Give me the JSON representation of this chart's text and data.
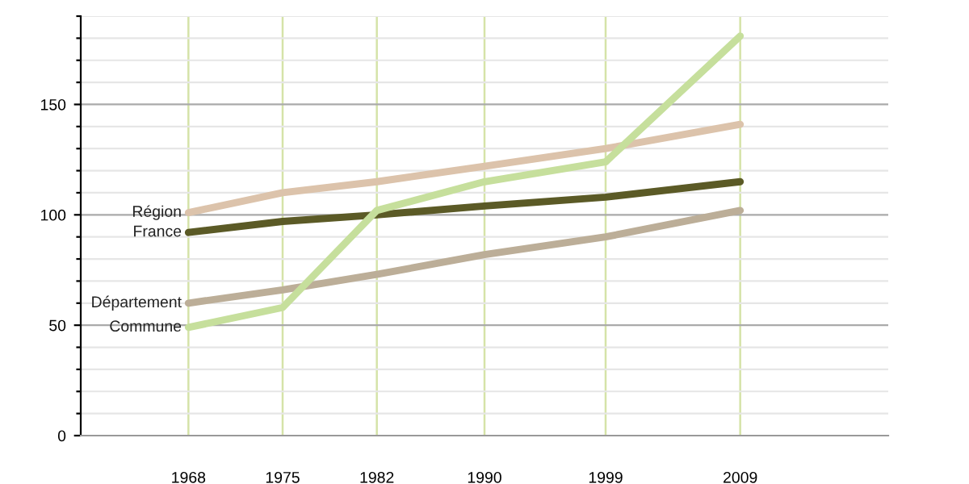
{
  "chart_data": {
    "type": "line",
    "x": [
      1968,
      1975,
      1982,
      1990,
      1999,
      2009
    ],
    "series": [
      {
        "name": "Région",
        "color": "#dcc3ab",
        "values": [
          101,
          110,
          115,
          122,
          130,
          141
        ]
      },
      {
        "name": "France",
        "color": "#5b5a26",
        "values": [
          92,
          97,
          100,
          104,
          108,
          115
        ]
      },
      {
        "name": "Département",
        "color": "#bcae98",
        "values": [
          60,
          66,
          73,
          82,
          90,
          102
        ]
      },
      {
        "name": "Commune",
        "color": "#c6df9c",
        "values": [
          49,
          58,
          102,
          115,
          124,
          181
        ]
      }
    ],
    "xlim": [
      1960,
      2020
    ],
    "xticks": [
      1968,
      1975,
      1982,
      1990,
      1999,
      2009
    ],
    "ylim": [
      0,
      190
    ],
    "yticks": [
      0,
      {
        "value": 10,
        "label": null
      },
      {
        "value": 20,
        "label": null
      },
      {
        "value": 30,
        "label": null
      },
      {
        "value": 40,
        "label": null
      },
      50,
      {
        "value": 60,
        "label": null
      },
      {
        "value": 70,
        "label": null
      },
      {
        "value": 80,
        "label": null
      },
      {
        "value": 90,
        "label": null
      },
      100,
      {
        "value": 110,
        "label": null
      },
      {
        "value": 120,
        "label": null
      },
      {
        "value": 130,
        "label": null
      },
      {
        "value": 140,
        "label": null
      },
      150,
      {
        "value": 160,
        "label": null
      },
      {
        "value": 170,
        "label": null
      },
      {
        "value": 180,
        "label": null
      },
      {
        "value": 190,
        "label": null
      }
    ],
    "grid": true,
    "legend": false,
    "marker": "none",
    "line_style": "solid"
  }
}
